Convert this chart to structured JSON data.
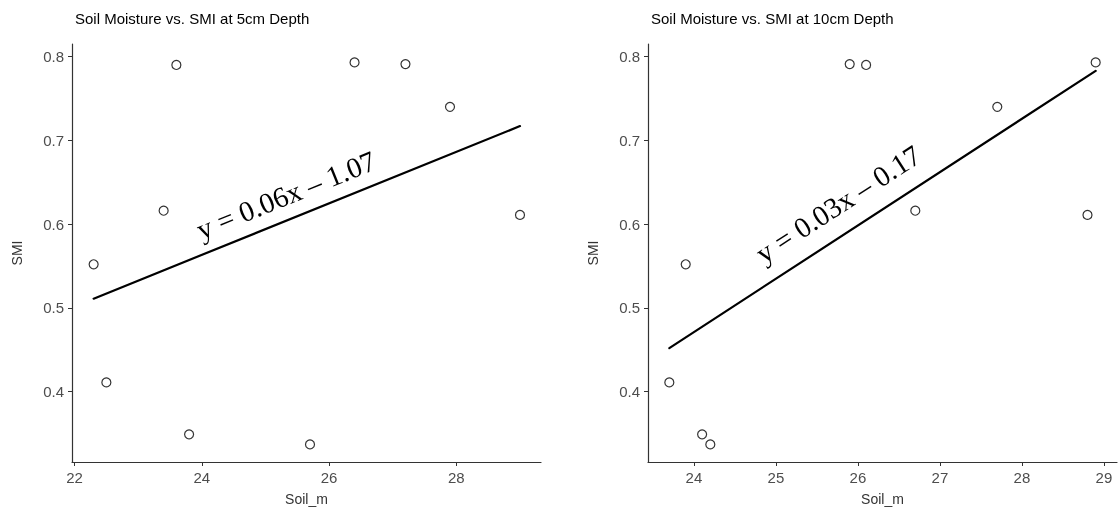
{
  "chart_data": [
    {
      "type": "scatter",
      "title": "Soil Moisture vs. SMI at 5cm Depth",
      "xlabel": "Soil_m",
      "ylabel": "SMI",
      "annotations": [
        "y = 0.06x – 1.07"
      ],
      "marker": "circle",
      "grid": false,
      "xlim": [
        21.96,
        29.33
      ],
      "xticks": [
        22,
        24,
        26,
        28
      ],
      "ylim": [
        0.316,
        0.815
      ],
      "yticks": [
        0.4,
        0.5,
        0.6,
        0.7,
        0.8
      ],
      "series": [
        {
          "color": "#000000",
          "x": [
            22.3,
            22.5,
            23.4,
            23.6,
            23.8,
            25.7,
            26.4,
            27.2,
            27.9,
            29.0
          ],
          "values": [
            0.552,
            0.411,
            0.616,
            0.79,
            0.349,
            0.337,
            0.793,
            0.791,
            0.74,
            0.611
          ]
        },
        {
          "type": "line",
          "color": "#000000",
          "marker": "none",
          "line_style": "solid",
          "x": [
            22.3,
            29.0
          ],
          "values": [
            0.511,
            0.717
          ]
        }
      ]
    },
    {
      "type": "scatter",
      "title": "Soil Moisture vs. SMI at 10cm Depth",
      "xlabel": "Soil_m",
      "ylabel": "SMI",
      "annotations": [
        "y = 0.03x – 0.17"
      ],
      "marker": "circle",
      "grid": false,
      "xlim": [
        23.44,
        29.16
      ],
      "xticks": [
        24,
        25,
        26,
        27,
        28,
        29
      ],
      "ylim": [
        0.316,
        0.815
      ],
      "yticks": [
        0.4,
        0.5,
        0.6,
        0.7,
        0.8
      ],
      "series": [
        {
          "color": "#000000",
          "x": [
            23.7,
            23.9,
            24.1,
            24.2,
            25.9,
            26.1,
            26.7,
            27.7,
            28.8,
            28.9
          ],
          "values": [
            0.411,
            0.552,
            0.349,
            0.337,
            0.791,
            0.79,
            0.616,
            0.74,
            0.611,
            0.793
          ]
        },
        {
          "type": "line",
          "color": "#000000",
          "marker": "none",
          "line_style": "solid",
          "x": [
            23.7,
            28.9
          ],
          "values": [
            0.452,
            0.783
          ]
        }
      ]
    }
  ]
}
